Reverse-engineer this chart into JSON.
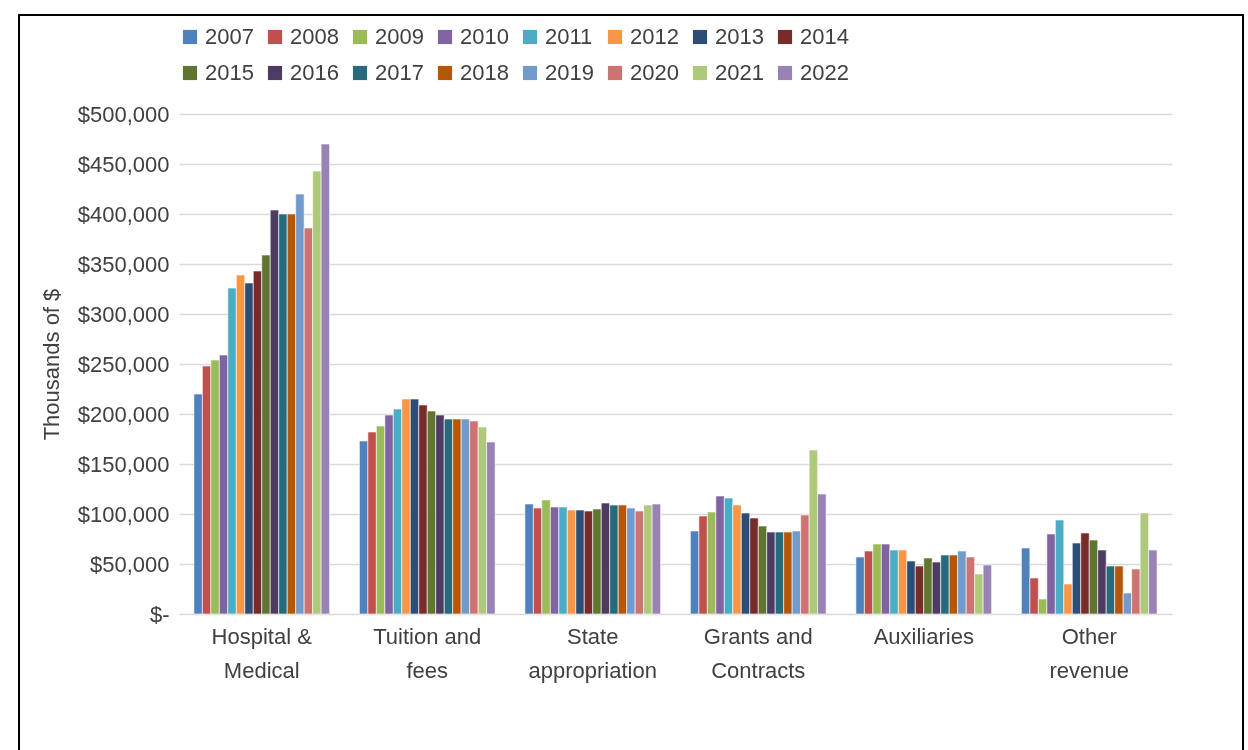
{
  "chart_data": {
    "type": "bar",
    "ylabel": "Thousands of $",
    "categories": [
      "Hospital & Medical",
      "Tuition and fees",
      "State appropriation",
      "Grants and Contracts",
      "Auxiliaries",
      "Other revenue"
    ],
    "series": [
      {
        "name": "2007",
        "color": "#4f81bd",
        "values": [
          220000,
          173000,
          110000,
          83000,
          57000,
          66000
        ]
      },
      {
        "name": "2008",
        "color": "#c0504d",
        "values": [
          248000,
          182000,
          106000,
          98000,
          63000,
          36000
        ]
      },
      {
        "name": "2009",
        "color": "#9bbb59",
        "values": [
          254000,
          188000,
          114000,
          102000,
          70000,
          15000
        ]
      },
      {
        "name": "2010",
        "color": "#8064a2",
        "values": [
          259000,
          199000,
          107000,
          118000,
          70000,
          80000
        ]
      },
      {
        "name": "2011",
        "color": "#4bacc6",
        "values": [
          326000,
          205000,
          107000,
          116000,
          64000,
          94000
        ]
      },
      {
        "name": "2012",
        "color": "#f79646",
        "values": [
          339000,
          215000,
          104000,
          109000,
          64000,
          30000
        ]
      },
      {
        "name": "2013",
        "color": "#2c4d75",
        "values": [
          331000,
          215000,
          104000,
          101000,
          53000,
          71000
        ]
      },
      {
        "name": "2014",
        "color": "#772c2a",
        "values": [
          343000,
          209000,
          103000,
          96000,
          48000,
          81000
        ]
      },
      {
        "name": "2015",
        "color": "#5f7530",
        "values": [
          359000,
          203000,
          105000,
          88000,
          56000,
          74000
        ]
      },
      {
        "name": "2016",
        "color": "#4d3b62",
        "values": [
          404000,
          199000,
          111000,
          82000,
          52000,
          64000
        ]
      },
      {
        "name": "2017",
        "color": "#276a7c",
        "values": [
          400000,
          195000,
          109000,
          82000,
          59000,
          48000
        ]
      },
      {
        "name": "2018",
        "color": "#b65708",
        "values": [
          400000,
          195000,
          109000,
          82000,
          59000,
          48000
        ]
      },
      {
        "name": "2019",
        "color": "#729aca",
        "values": [
          420000,
          195000,
          106000,
          83000,
          63000,
          21000
        ]
      },
      {
        "name": "2020",
        "color": "#cd7371",
        "values": [
          386000,
          193000,
          103000,
          99000,
          57000,
          45000
        ]
      },
      {
        "name": "2021",
        "color": "#afc97a",
        "values": [
          443000,
          187000,
          109000,
          164000,
          40000,
          101000
        ]
      },
      {
        "name": "2022",
        "color": "#9983b5",
        "values": [
          470000,
          172000,
          110000,
          120000,
          49000,
          64000
        ]
      }
    ],
    "ylim": [
      0,
      500000
    ],
    "yticks": [
      {
        "value": 0,
        "label": "$-"
      },
      {
        "value": 50000,
        "label": "$50,000"
      },
      {
        "value": 100000,
        "label": "$100,000"
      },
      {
        "value": 150000,
        "label": "$150,000"
      },
      {
        "value": 200000,
        "label": "$200,000"
      },
      {
        "value": 250000,
        "label": "$250,000"
      },
      {
        "value": 300000,
        "label": "$300,000"
      },
      {
        "value": 350000,
        "label": "$350,000"
      },
      {
        "value": 400000,
        "label": "$400,000"
      },
      {
        "value": 450000,
        "label": "$450,000"
      },
      {
        "value": 500000,
        "label": "$500,000"
      }
    ],
    "grid": "y",
    "legend": "top"
  }
}
